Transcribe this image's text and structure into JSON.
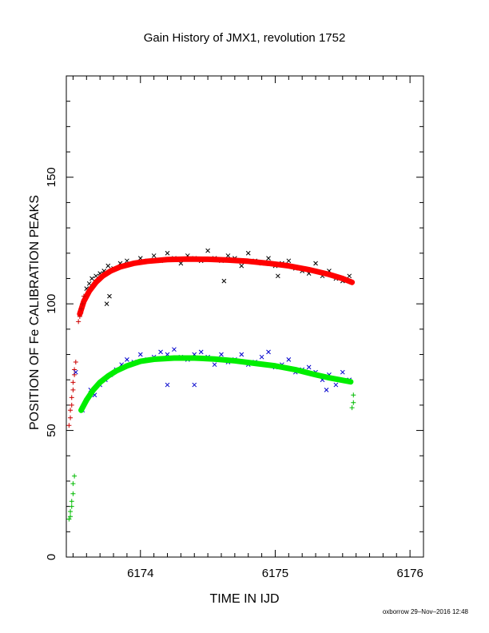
{
  "chart_data": {
    "type": "scatter",
    "title": "Gain History of JMX1, revolution 1752",
    "xlabel": "TIME IN IJD",
    "ylabel": "POSITION OF Fe CALIBRATION PEAKS",
    "footer": "oxborrow 29–Nov–2016 12:48",
    "xlim": [
      6173.45,
      6176.1
    ],
    "ylim": [
      0,
      190
    ],
    "xticks": [
      6174,
      6175,
      6176
    ],
    "xtick_labels": [
      "6174",
      "6175",
      "6176"
    ],
    "yticks": [
      0,
      50,
      100,
      150
    ],
    "ytick_labels": [
      "0",
      "50",
      "100",
      "150"
    ],
    "grid": false,
    "legend": "none",
    "colors": {
      "upper_raw": "#000000",
      "upper_fit": "#ff0000",
      "upper_early": "#cc0000",
      "lower_raw": "#0000cc",
      "lower_fit": "#00ee00",
      "lower_early": "#00bb00"
    },
    "series": [
      {
        "marker": "x",
        "color": "#000000",
        "x": [
          6173.56,
          6173.58,
          6173.6,
          6173.62,
          6173.64,
          6173.67,
          6173.7,
          6173.73,
          6173.76,
          6173.8,
          6173.85,
          6173.9,
          6173.95,
          6174.0,
          6174.05,
          6174.1,
          6174.15,
          6174.2,
          6174.25,
          6174.3,
          6174.35,
          6174.4,
          6174.45,
          6174.5,
          6174.55,
          6174.6,
          6174.65,
          6174.7,
          6174.75,
          6174.8,
          6174.85,
          6174.9,
          6174.95,
          6175.0,
          6175.05,
          6175.1,
          6175.15,
          6175.2,
          6175.25,
          6175.3,
          6175.35,
          6175.4,
          6175.45,
          6175.5,
          6175.55,
          6173.75,
          6173.77,
          6174.62,
          6175.02
        ],
        "y": [
          97,
          101,
          106,
          108,
          110,
          111,
          112,
          113,
          115,
          114,
          116,
          117,
          116,
          118,
          117,
          119,
          117,
          120,
          118,
          116,
          119,
          118,
          117,
          121,
          118,
          117,
          119,
          118,
          115,
          120,
          117,
          116,
          118,
          115,
          116,
          117,
          114,
          113,
          112,
          116,
          111,
          113,
          110,
          109,
          111,
          100,
          103,
          109,
          111
        ]
      },
      {
        "marker": "line",
        "color": "#ff0000",
        "x": [
          6173.55,
          6173.58,
          6173.62,
          6173.67,
          6173.72,
          6173.78,
          6173.85,
          6173.95,
          6174.05,
          6174.2,
          6174.35,
          6174.5,
          6174.65,
          6174.8,
          6174.95,
          6175.1,
          6175.25,
          6175.4,
          6175.5,
          6175.57
        ],
        "y": [
          96,
          101,
          105,
          108.5,
          111,
          113,
          114.6,
          116,
          116.8,
          117.5,
          117.7,
          117.6,
          117.3,
          116.8,
          116,
          115,
          113.5,
          111.6,
          110,
          108.5
        ]
      },
      {
        "marker": "+",
        "color": "#cc0000",
        "x": [
          6173.47,
          6173.48,
          6173.48,
          6173.49,
          6173.49,
          6173.5,
          6173.5,
          6173.51,
          6173.51,
          6173.52,
          6173.54,
          6173.55,
          6173.56,
          6173.57,
          6173.58
        ],
        "y": [
          52,
          55,
          58,
          60,
          63,
          66,
          69,
          72,
          74,
          77,
          93,
          95,
          98,
          100,
          103
        ]
      },
      {
        "marker": "x",
        "color": "#0000cc",
        "x": [
          6173.57,
          6173.6,
          6173.63,
          6173.66,
          6173.7,
          6173.74,
          6173.78,
          6173.82,
          6173.86,
          6173.9,
          6173.95,
          6174.0,
          6174.05,
          6174.1,
          6174.15,
          6174.2,
          6174.25,
          6174.3,
          6174.35,
          6174.4,
          6174.45,
          6174.5,
          6174.55,
          6174.6,
          6174.65,
          6174.7,
          6174.75,
          6174.8,
          6174.85,
          6174.9,
          6174.95,
          6175.0,
          6175.05,
          6175.1,
          6175.15,
          6175.2,
          6175.25,
          6175.3,
          6175.35,
          6175.4,
          6175.45,
          6175.5,
          6175.55,
          6173.52,
          6174.2,
          6174.4,
          6175.38
        ],
        "y": [
          58,
          62,
          66,
          64,
          68,
          70,
          72,
          74,
          76,
          78,
          77,
          80,
          78,
          79,
          81,
          80,
          82,
          79,
          78,
          80,
          81,
          79,
          76,
          80,
          77,
          78,
          80,
          76,
          77,
          79,
          81,
          75,
          76,
          78,
          73,
          74,
          75,
          73,
          70,
          72,
          68,
          73,
          70,
          73,
          68,
          68,
          66
        ]
      },
      {
        "marker": "line",
        "color": "#00ee00",
        "x": [
          6173.56,
          6173.6,
          6173.65,
          6173.7,
          6173.76,
          6173.82,
          6173.9,
          6174.0,
          6174.1,
          6174.25,
          6174.4,
          6174.55,
          6174.7,
          6174.85,
          6175.0,
          6175.15,
          6175.3,
          6175.4,
          6175.5,
          6175.56
        ],
        "y": [
          58,
          62,
          66,
          69,
          71.5,
          73.5,
          75.5,
          77.3,
          78.1,
          78.6,
          78.6,
          78.2,
          77.5,
          76.5,
          75.5,
          74,
          72,
          70.8,
          69.8,
          69.2
        ]
      },
      {
        "marker": "+",
        "color": "#00bb00",
        "x": [
          6173.47,
          6173.48,
          6173.48,
          6173.49,
          6173.49,
          6173.5,
          6173.5,
          6173.51,
          6175.57,
          6175.58,
          6175.58
        ],
        "y": [
          15,
          16,
          18,
          20,
          22,
          25,
          29,
          32,
          59,
          61,
          64
        ]
      }
    ]
  }
}
